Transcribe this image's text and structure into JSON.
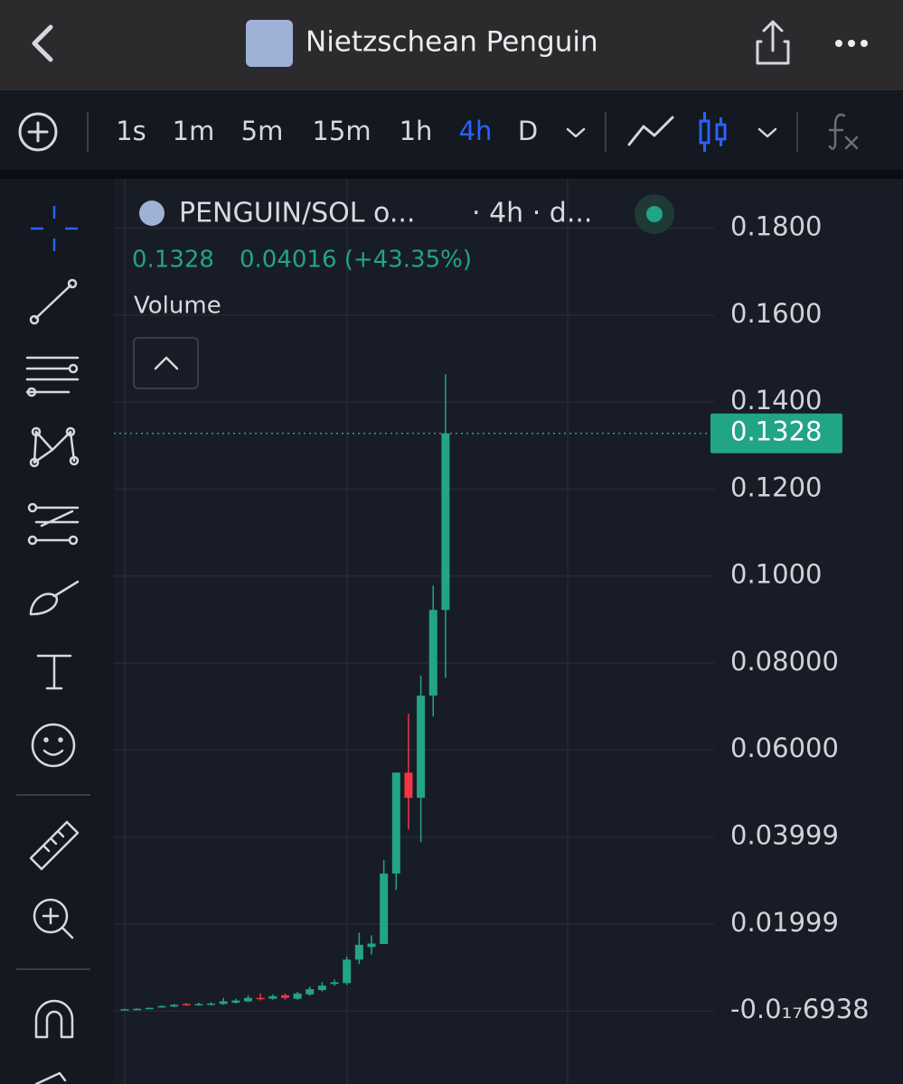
{
  "header": {
    "title": "Nietzschean Penguin"
  },
  "toolbar": {
    "intervals": [
      "1s",
      "1m",
      "5m",
      "15m",
      "1h",
      "4h",
      "D"
    ],
    "active_index": 5
  },
  "legend": {
    "symbol": "PENGUIN/SOL o...",
    "meta": "· 4h · d...",
    "price": "0.1328",
    "change": "0.04016 (+43.35%)",
    "volume": "Volume"
  },
  "chart_data": {
    "type": "candlestick",
    "up_color": "#22a487",
    "down_color": "#f23645",
    "grid": true,
    "ylim": [
      -0.0168,
      0.1909
    ],
    "yticks": [
      {
        "value": 0.18,
        "label": "0.1800"
      },
      {
        "value": 0.16,
        "label": "0.1600"
      },
      {
        "value": 0.14,
        "label": "0.1400"
      },
      {
        "value": 0.12,
        "label": "0.1200"
      },
      {
        "value": 0.1,
        "label": "0.1000"
      },
      {
        "value": 0.08,
        "label": "0.08000"
      },
      {
        "value": 0.06,
        "label": "0.06000"
      },
      0.03999,
      0.01999,
      {
        "value": -6.938e-18,
        "label": "-0.0₁₇6938"
      }
    ],
    "open": [
      0.0003,
      0.0004,
      0.0005,
      0.0009,
      0.001,
      0.0016,
      0.0014,
      0.0015,
      0.0016,
      0.0019,
      0.0022,
      0.003,
      0.0028,
      0.0036,
      0.0028,
      0.0038,
      0.0048,
      0.0062,
      0.0064,
      0.0118,
      0.0147,
      0.0154,
      0.0316,
      0.0548,
      0.049,
      0.0725,
      0.0922
    ],
    "high": [
      0.0005,
      0.0006,
      0.0008,
      0.0013,
      0.0016,
      0.0018,
      0.0019,
      0.002,
      0.003,
      0.0028,
      0.0036,
      0.004,
      0.0038,
      0.004,
      0.0044,
      0.0056,
      0.0066,
      0.0072,
      0.0125,
      0.018,
      0.0174,
      0.0347,
      0.0548,
      0.0683,
      0.0771,
      0.0978,
      0.1464
    ],
    "low": [
      0.0002,
      0.0003,
      0.0004,
      0.0008,
      0.0009,
      0.0012,
      0.0012,
      0.0013,
      0.0014,
      0.0017,
      0.002,
      0.0024,
      0.0026,
      0.0026,
      0.0026,
      0.0035,
      0.0045,
      0.0058,
      0.006,
      0.0108,
      0.013,
      0.0154,
      0.0278,
      0.0417,
      0.0388,
      0.0677,
      0.0766
    ],
    "close": [
      0.0004,
      0.0005,
      0.0007,
      0.0011,
      0.0014,
      0.0013,
      0.0016,
      0.0017,
      0.0022,
      0.0024,
      0.003,
      0.0027,
      0.0034,
      0.003,
      0.004,
      0.005,
      0.0058,
      0.0066,
      0.0118,
      0.0152,
      0.0155,
      0.0316,
      0.0548,
      0.049,
      0.0725,
      0.0922,
      0.1328
    ],
    "last_price": 0.1328
  }
}
